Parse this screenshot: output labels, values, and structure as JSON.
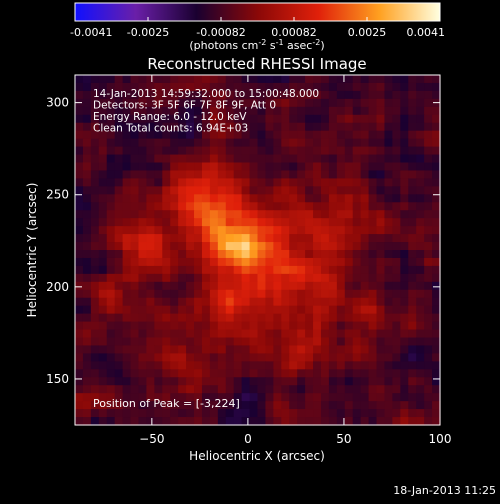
{
  "chart_data": {
    "type": "heatmap",
    "title": "Reconstructed RHESSI Image",
    "xlabel": "Heliocentric X (arcsec)",
    "ylabel": "Heliocentric Y (arcsec)",
    "xlim": [
      -90,
      100
    ],
    "ylim": [
      125,
      315
    ],
    "xticks": [
      -50,
      0,
      50,
      100
    ],
    "yticks": [
      150,
      200,
      250,
      300
    ],
    "info_lines": [
      "14-Jan-2013 14:59:32.000 to 15:00:48.000",
      "Detectors: 3F 5F 6F 7F 8F 9F, Att 0",
      "Energy Range: 6.0 - 12.0 keV",
      "Clean     Total counts: 6.94E+03"
    ],
    "peak_label": "Position of Peak = [-3,224]",
    "peak": [
      -3,
      224
    ],
    "colorbar": {
      "range": [
        -0.0041,
        0.0041
      ],
      "ticks": [
        "-0.0041",
        "-0.0025",
        "-0.00082",
        "0.00082",
        "0.0025",
        "0.0041"
      ],
      "unit_label": "(photons cm-2 s-1 asec-2)",
      "stops": [
        "#1010ff",
        "#6a1fa8",
        "#1a0030",
        "#8a0808",
        "#e0200a",
        "#ffa020",
        "#ffffe0"
      ]
    },
    "sources": [
      {
        "x": -3,
        "y": 224,
        "sigma": 14,
        "amp": 0.0041
      },
      {
        "x": -25,
        "y": 248,
        "sigma": 13,
        "amp": 0.0022
      },
      {
        "x": -55,
        "y": 222,
        "sigma": 12,
        "amp": 0.0016
      },
      {
        "x": 30,
        "y": 200,
        "sigma": 14,
        "amp": 0.0017
      },
      {
        "x": 45,
        "y": 235,
        "sigma": 14,
        "amp": 0.0014
      },
      {
        "x": -10,
        "y": 185,
        "sigma": 13,
        "amp": 0.0016
      },
      {
        "x": 20,
        "y": 165,
        "sigma": 12,
        "amp": 0.0012
      },
      {
        "x": -40,
        "y": 160,
        "sigma": 12,
        "amp": 0.001
      },
      {
        "x": 60,
        "y": 185,
        "sigma": 12,
        "amp": 0.001
      },
      {
        "x": -70,
        "y": 190,
        "sigma": 11,
        "amp": 0.0008
      }
    ],
    "background_level": -0.0008,
    "noise_amplitude": 0.0009
  },
  "footer_date": "18-Jan-2013 11:25"
}
